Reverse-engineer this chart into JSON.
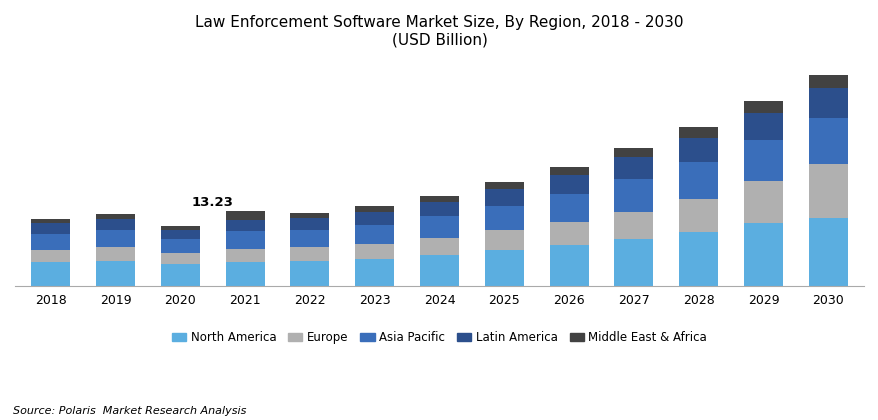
{
  "title_line1": "Law Enforcement Software Market Size, By Region, 2018 - 2030",
  "title_line2": "(USD Billion)",
  "source": "Source: Polaris  Market Research Analysis",
  "years": [
    2018,
    2019,
    2020,
    2021,
    2022,
    2023,
    2024,
    2025,
    2026,
    2027,
    2028,
    2029,
    2030
  ],
  "annotation_year": 2021,
  "annotation_text": "13.23",
  "regions": [
    "North America",
    "Europe",
    "Asia Pacific",
    "Latin America",
    "Middle East & Africa"
  ],
  "colors": [
    "#5baee0",
    "#b0b0b0",
    "#3a6eba",
    "#2c4f8c",
    "#424242"
  ],
  "data": {
    "North America": [
      4.2,
      4.5,
      3.8,
      4.3,
      4.4,
      4.8,
      5.5,
      6.3,
      7.2,
      8.2,
      9.5,
      11.0,
      12.0
    ],
    "Europe": [
      2.2,
      2.4,
      2.0,
      2.3,
      2.4,
      2.6,
      3.0,
      3.5,
      4.0,
      4.8,
      5.8,
      7.5,
      9.5
    ],
    "Asia Pacific": [
      2.8,
      3.0,
      2.5,
      3.0,
      3.1,
      3.4,
      3.8,
      4.3,
      5.0,
      5.8,
      6.5,
      7.2,
      8.0
    ],
    "Latin America": [
      1.8,
      1.9,
      1.6,
      2.0,
      2.0,
      2.2,
      2.5,
      2.9,
      3.3,
      3.8,
      4.2,
      4.7,
      5.2
    ],
    "Middle East & Africa": [
      0.8,
      0.9,
      0.7,
      1.63,
      0.9,
      1.0,
      1.1,
      1.3,
      1.5,
      1.7,
      1.9,
      2.1,
      2.3
    ]
  },
  "ylim": [
    0,
    40
  ],
  "figsize": [
    8.79,
    4.2
  ],
  "dpi": 100,
  "bar_width": 0.6,
  "legend_fontsize": 8.5,
  "title_fontsize": 11,
  "annotation_fontsize": 9.5,
  "tick_fontsize": 9
}
